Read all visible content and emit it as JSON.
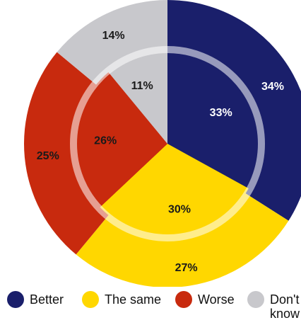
{
  "chart_data": {
    "type": "pie",
    "categories": [
      "Better",
      "The same",
      "Worse",
      "Don't know"
    ],
    "colors": [
      "#1a1f6b",
      "#ffd700",
      "#c82a0e",
      "#c8c8cc"
    ],
    "series": [
      {
        "ring": "outer",
        "values": [
          34,
          27,
          25,
          14
        ],
        "labels": [
          "34%",
          "27%",
          "25%",
          "14%"
        ]
      },
      {
        "ring": "inner",
        "values": [
          33,
          30,
          26,
          11
        ],
        "labels": [
          "33%",
          "30%",
          "26%",
          "11%"
        ]
      }
    ],
    "legend_position": "bottom"
  },
  "legend": {
    "items": [
      {
        "label": "Better"
      },
      {
        "label": "The same"
      },
      {
        "label": "Worse"
      },
      {
        "label": "Don't know"
      }
    ]
  }
}
